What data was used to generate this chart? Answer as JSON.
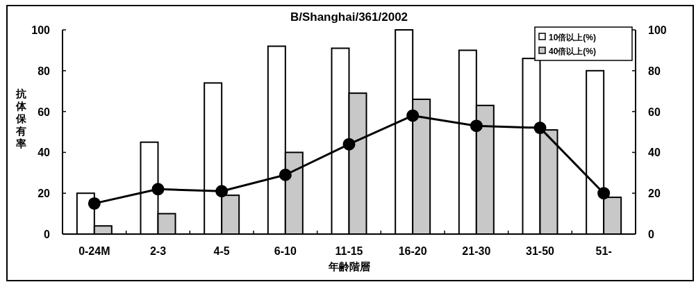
{
  "chart_data": {
    "type": "bar",
    "title": "B/Shanghai/361/2002",
    "xlabel": "年齢階層",
    "ylabel": "抗体保有率",
    "categories": [
      "0-24M",
      "2-3",
      "4-5",
      "6-10",
      "11-15",
      "16-20",
      "21-30",
      "31-50",
      "51-"
    ],
    "series": [
      {
        "name": "10倍以上(%)",
        "color": "#ffffff",
        "values": [
          20,
          45,
          74,
          92,
          91,
          100,
          90,
          86,
          80
        ]
      },
      {
        "name": "40倍以上(%)",
        "color": "#c8c8c8",
        "values": [
          4,
          10,
          19,
          40,
          69,
          66,
          63,
          51,
          18
        ]
      },
      {
        "type": "line",
        "color": "#000000",
        "marker": "circle",
        "values": [
          15,
          22,
          21,
          29,
          44,
          58,
          53,
          52,
          20
        ]
      }
    ],
    "ylim": [
      0,
      100
    ],
    "yticks": [
      0,
      20,
      40,
      60,
      80,
      100
    ],
    "y2lim": [
      0,
      100
    ],
    "y2ticks": [
      0,
      20,
      40,
      60,
      80,
      100
    ],
    "legend": "top right",
    "grid": false
  }
}
